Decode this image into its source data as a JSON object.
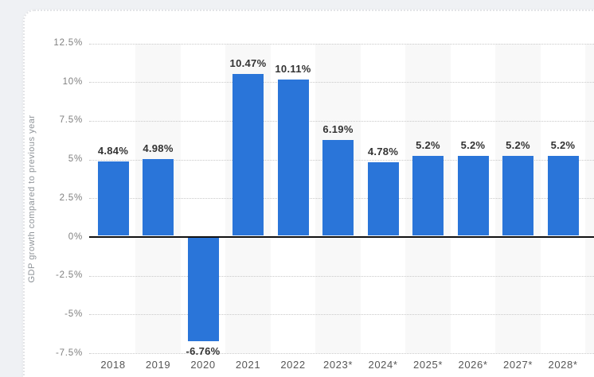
{
  "page": {
    "background_color": "#eff1f4",
    "card_background_color": "#ffffff"
  },
  "chart_data": {
    "type": "bar",
    "title": "",
    "xlabel": "",
    "ylabel": "GDP growth compared to previous year",
    "categories": [
      "2018",
      "2019",
      "2020",
      "2021",
      "2022",
      "2023*",
      "2024*",
      "2025*",
      "2026*",
      "2027*",
      "2028*"
    ],
    "values": [
      4.84,
      4.98,
      -6.76,
      10.47,
      10.11,
      6.19,
      4.78,
      5.2,
      5.2,
      5.2,
      5.2
    ],
    "bar_labels": [
      "4.84%",
      "4.98%",
      "-6.76%",
      "10.47%",
      "10.11%",
      "6.19%",
      "4.78%",
      "5.2%",
      "5.2%",
      "5.2%",
      "5.2%"
    ],
    "y_ticks": [
      {
        "label": "12.5%",
        "value": 12.5
      },
      {
        "label": "10%",
        "value": 10
      },
      {
        "label": "7.5%",
        "value": 7.5
      },
      {
        "label": "5%",
        "value": 5
      },
      {
        "label": "2.5%",
        "value": 2.5
      },
      {
        "label": "0%",
        "value": 0
      },
      {
        "label": "-2.5%",
        "value": -2.5
      },
      {
        "label": "-5%",
        "value": -5
      },
      {
        "label": "-7.5%",
        "value": -7.5
      }
    ],
    "ylim": [
      -7.5,
      12.5
    ],
    "grid": "horizontal-dotted",
    "legend": "none",
    "colors": {
      "bar": "#2a75d9",
      "column_band": "#f8f8f8",
      "gridline": "#c9c9c9",
      "zero_line": "#111111",
      "bar_label": "#333333",
      "tick_label": "#808080",
      "x_label": "#565656",
      "axis_title": "#8f9499"
    }
  }
}
